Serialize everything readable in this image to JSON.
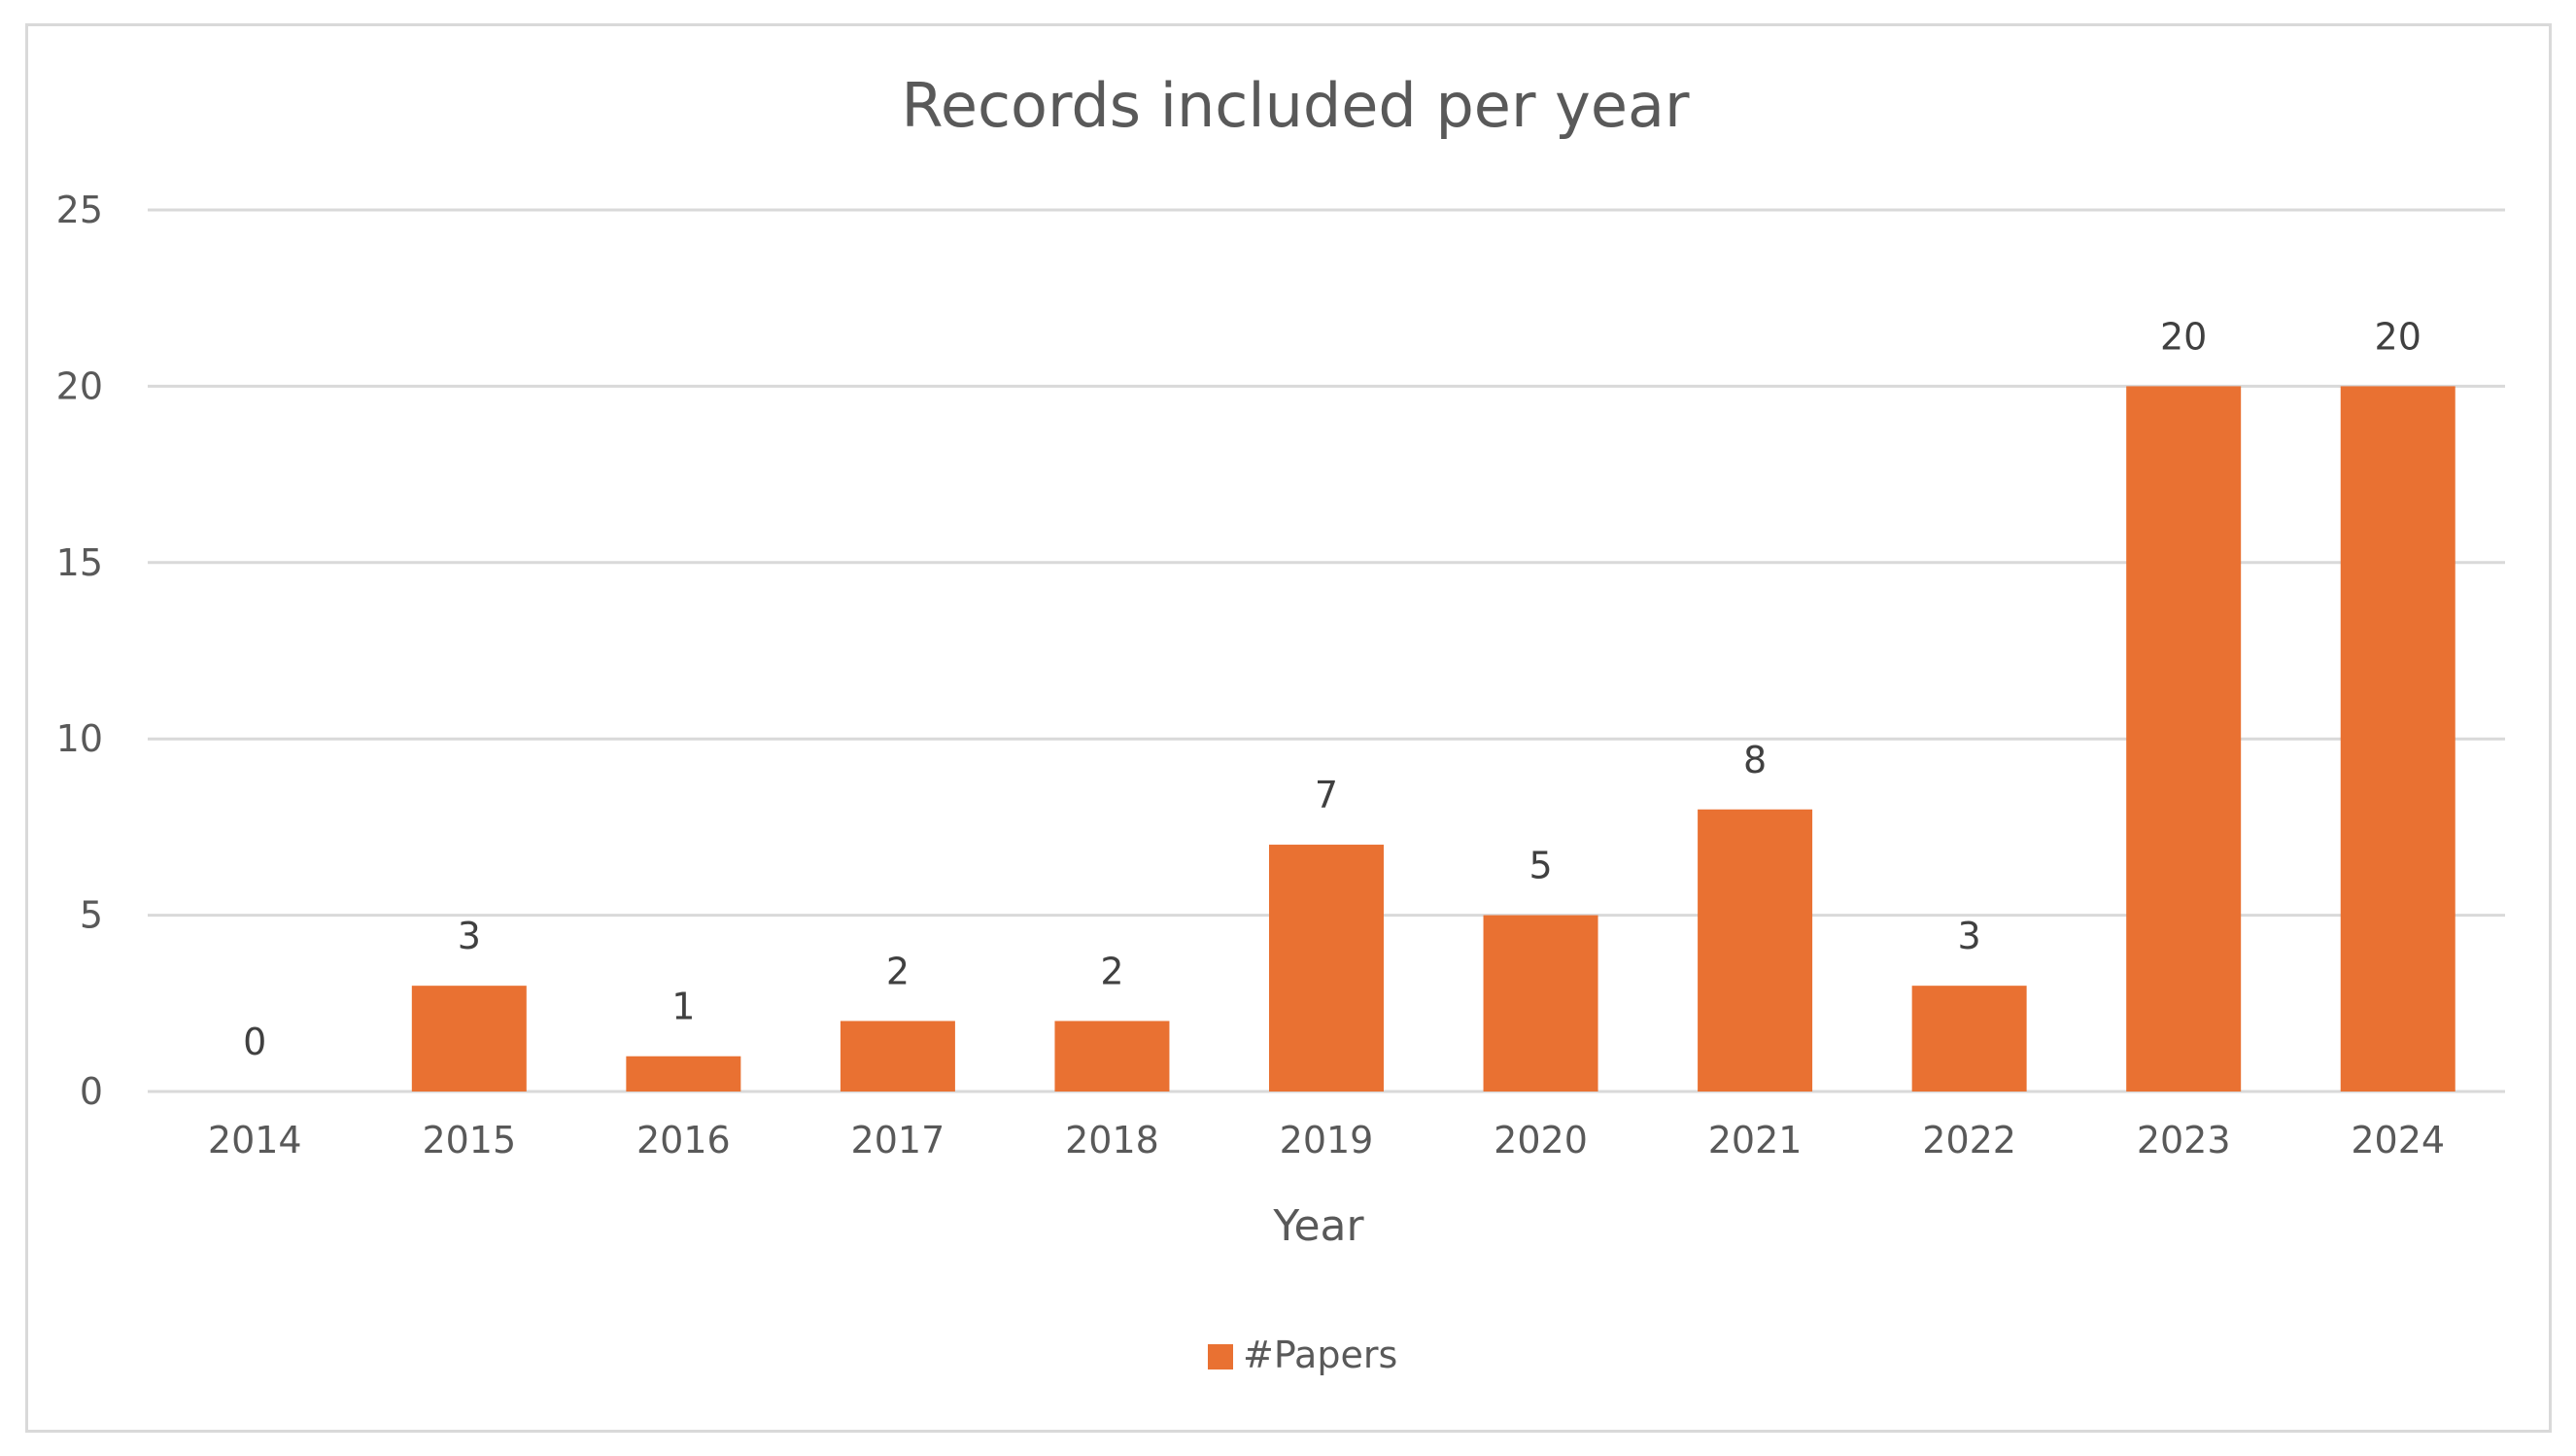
{
  "chart_data": {
    "type": "bar",
    "title": "Records included per year",
    "xlabel": "Year",
    "ylabel": "",
    "categories": [
      "2014",
      "2015",
      "2016",
      "2017",
      "2018",
      "2019",
      "2020",
      "2021",
      "2022",
      "2023",
      "2024"
    ],
    "series": [
      {
        "name": "#Papers",
        "values": [
          0,
          3,
          1,
          2,
          2,
          7,
          5,
          8,
          3,
          20,
          20
        ],
        "color": "#e97132"
      }
    ],
    "ylim": [
      0,
      25
    ],
    "yticks": [
      0,
      5,
      10,
      15,
      20,
      25
    ],
    "grid": true,
    "legend": "bottom",
    "data_labels": true
  }
}
